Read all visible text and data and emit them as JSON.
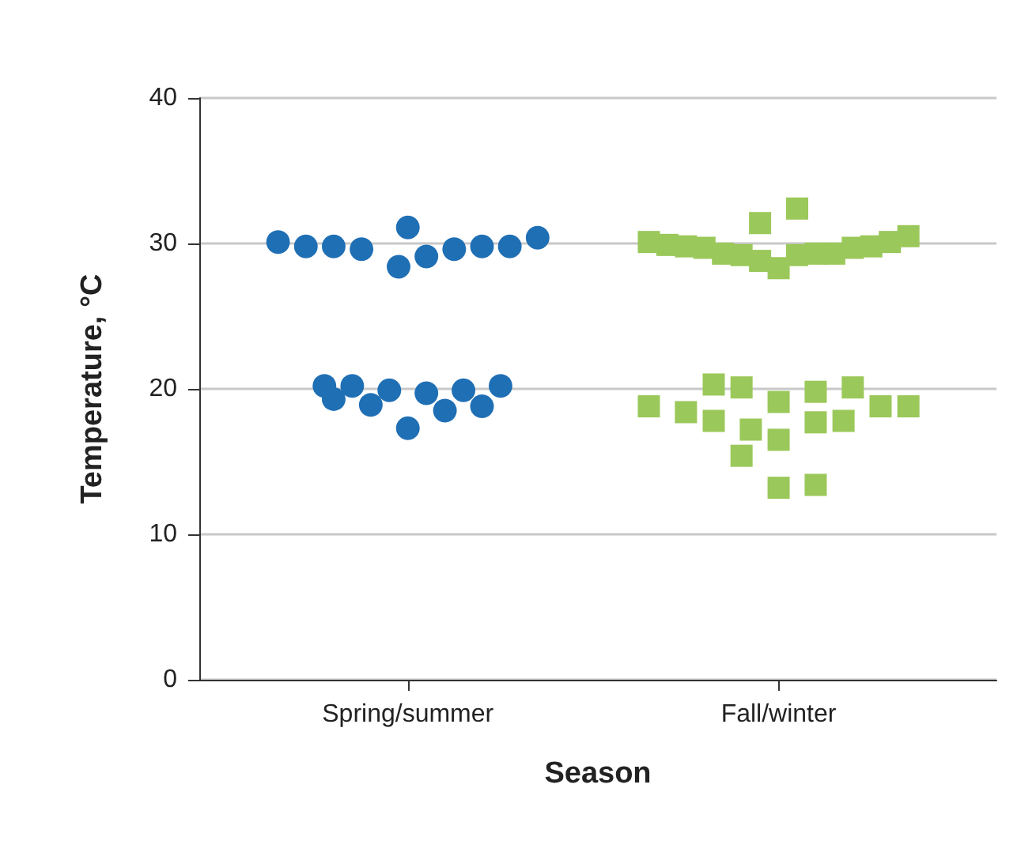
{
  "chart_data": {
    "type": "scatter",
    "xlabel": "Season",
    "ylabel": "Temperature, °C",
    "ylim": [
      0,
      40
    ],
    "yticks": [
      0,
      10,
      20,
      30,
      40
    ],
    "grid": "y",
    "categories": [
      null,
      null,
      null,
      null,
      null,
      null,
      null,
      null,
      null,
      null,
      null,
      null,
      null,
      null,
      null,
      null,
      null,
      null,
      null,
      null,
      null,
      null,
      "Spring/summer",
      null,
      null,
      null,
      null,
      null,
      null,
      null,
      null,
      null,
      null,
      null,
      null,
      null,
      null,
      null,
      null,
      null,
      null,
      null,
      null,
      null,
      null,
      null,
      null,
      null,
      null,
      null,
      null,
      null,
      null,
      null,
      null,
      null,
      null,
      null,
      null,
      null,
      null,
      null,
      "Fall/winter",
      null,
      null,
      null,
      null,
      null,
      null,
      null,
      null,
      null,
      null,
      null,
      null,
      null,
      null,
      null,
      null,
      null,
      null,
      null,
      null,
      null,
      null,
      null
    ],
    "series": [
      {
        "color": "#1f6fb5",
        "marker": "circle",
        "values": [
          null,
          null,
          null,
          null,
          null,
          null,
          null,
          null,
          30.1,
          null,
          null,
          29.8,
          null,
          null,
          29.8,
          null,
          null,
          29.6,
          null,
          null,
          null,
          28.4,
          31.1,
          null,
          29.1,
          null,
          null,
          29.6,
          null,
          null,
          29.8,
          null,
          null,
          29.8,
          null,
          null,
          30.4,
          null,
          null,
          null,
          null,
          null,
          null,
          null,
          null,
          null,
          null,
          null,
          null,
          null,
          null,
          null,
          null,
          null,
          null,
          null,
          null,
          null,
          null,
          null,
          null,
          null,
          null,
          null,
          null,
          null,
          null,
          null,
          null,
          null,
          null,
          null,
          null,
          null,
          null,
          null,
          null,
          null,
          null,
          null,
          null,
          null,
          null,
          null,
          null,
          null
        ]
      },
      {
        "color": "#1f6fb5",
        "marker": "circle",
        "values": [
          null,
          null,
          null,
          null,
          null,
          null,
          null,
          null,
          null,
          null,
          null,
          null,
          null,
          20.2,
          19.3,
          null,
          20.2,
          null,
          18.9,
          null,
          19.9,
          null,
          17.3,
          null,
          19.7,
          null,
          18.5,
          null,
          19.9,
          null,
          18.8,
          null,
          20.2,
          null,
          null,
          null,
          null,
          null,
          null,
          null,
          null,
          null,
          null,
          null,
          null,
          null,
          null,
          null,
          null,
          null,
          null,
          null,
          null,
          null,
          null,
          null,
          null,
          null,
          null,
          null,
          null,
          null,
          null,
          null,
          null,
          null,
          null,
          null,
          null,
          null,
          null,
          null,
          null,
          null,
          null,
          null,
          null,
          null,
          null,
          null,
          null,
          null,
          null,
          null,
          null,
          null
        ]
      },
      {
        "color": "#9bc85a",
        "marker": "square",
        "values": [
          null,
          null,
          null,
          null,
          null,
          null,
          null,
          null,
          null,
          null,
          null,
          null,
          null,
          null,
          null,
          null,
          null,
          null,
          null,
          null,
          null,
          null,
          null,
          null,
          null,
          null,
          null,
          null,
          null,
          null,
          null,
          null,
          null,
          null,
          null,
          null,
          null,
          null,
          null,
          null,
          null,
          null,
          null,
          null,
          null,
          null,
          null,
          null,
          30.1,
          null,
          29.9,
          null,
          29.8,
          null,
          29.7,
          null,
          29.3,
          null,
          29.2,
          null,
          31.4,
          null,
          28.3,
          null,
          32.4,
          null,
          29.3,
          null,
          29.3,
          null,
          29.7,
          null,
          29.8,
          null,
          30.1,
          null,
          30.5,
          null,
          null,
          null,
          null,
          null,
          null,
          null,
          null,
          null
        ]
      },
      {
        "color": "#9bc85a",
        "marker": "square",
        "values": [
          null,
          null,
          null,
          null,
          null,
          null,
          null,
          null,
          null,
          null,
          null,
          null,
          null,
          null,
          null,
          null,
          null,
          null,
          null,
          null,
          null,
          null,
          null,
          null,
          null,
          null,
          null,
          null,
          null,
          null,
          null,
          null,
          null,
          null,
          null,
          null,
          null,
          null,
          null,
          null,
          null,
          null,
          null,
          null,
          null,
          null,
          null,
          null,
          18.8,
          null,
          null,
          null,
          18.4,
          null,
          null,
          20.3,
          null,
          null,
          20.1,
          17.2,
          null,
          null,
          19.1,
          null,
          null,
          null,
          19.8,
          null,
          null,
          17.8,
          20.1,
          null,
          null,
          18.8,
          null,
          null,
          18.8,
          null,
          null,
          null,
          null,
          null,
          null,
          null,
          null,
          null
        ]
      },
      {
        "color": "#9bc85a",
        "marker": "square",
        "values": [
          null,
          null,
          null,
          null,
          null,
          null,
          null,
          null,
          null,
          null,
          null,
          null,
          null,
          null,
          null,
          null,
          null,
          null,
          null,
          null,
          null,
          null,
          null,
          null,
          null,
          null,
          null,
          null,
          null,
          null,
          null,
          null,
          null,
          null,
          null,
          null,
          null,
          null,
          null,
          null,
          null,
          null,
          null,
          null,
          null,
          null,
          null,
          null,
          null,
          null,
          null,
          null,
          null,
          null,
          null,
          17.8,
          null,
          null,
          15.4,
          null,
          28.8,
          null,
          16.5,
          null,
          29.2,
          null,
          17.7,
          null,
          null,
          null,
          null,
          null,
          null,
          null,
          null,
          null,
          null,
          null,
          null,
          null,
          null,
          null,
          null,
          null,
          null,
          null
        ]
      },
      {
        "color": "#9bc85a",
        "marker": "square",
        "values": [
          null,
          null,
          null,
          null,
          null,
          null,
          null,
          null,
          null,
          null,
          null,
          null,
          null,
          null,
          null,
          null,
          null,
          null,
          null,
          null,
          null,
          null,
          null,
          null,
          null,
          null,
          null,
          null,
          null,
          null,
          null,
          null,
          null,
          null,
          null,
          null,
          null,
          null,
          null,
          null,
          null,
          null,
          null,
          null,
          null,
          null,
          null,
          null,
          null,
          null,
          null,
          null,
          null,
          null,
          null,
          null,
          null,
          null,
          null,
          null,
          null,
          null,
          13.2,
          null,
          null,
          null,
          13.4,
          null,
          null,
          null,
          null,
          null,
          null,
          null,
          null,
          null,
          null,
          null,
          null,
          null,
          null,
          null,
          null,
          null,
          null,
          null
        ]
      }
    ]
  }
}
